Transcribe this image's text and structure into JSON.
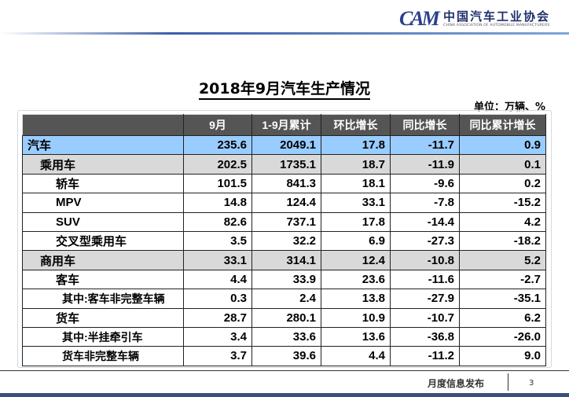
{
  "logo": {
    "cn": "中国汽车工业协会",
    "en": "CHINA ASSOCIATION OF AUTOMOBILE MANUFACTURERS",
    "mark": "CAM"
  },
  "title": "2018年9月汽车生产情况",
  "unit": "单位：万辆、%",
  "table": {
    "headers": [
      "",
      "9月",
      "1-9月累计",
      "环比增长",
      "同比增长",
      "同比累计增长"
    ],
    "rows": [
      {
        "label": "汽车",
        "values": [
          "235.6",
          "2049.1",
          "17.8",
          "-11.7",
          "0.9"
        ]
      },
      {
        "label": "乘用车",
        "values": [
          "202.5",
          "1735.1",
          "18.7",
          "-11.9",
          "0.1"
        ]
      },
      {
        "label": "轿车",
        "values": [
          "101.5",
          "841.3",
          "18.1",
          "-9.6",
          "0.2"
        ]
      },
      {
        "label": "MPV",
        "values": [
          "14.8",
          "124.4",
          "33.1",
          "-7.8",
          "-15.2"
        ]
      },
      {
        "label": "SUV",
        "values": [
          "82.6",
          "737.1",
          "17.8",
          "-14.4",
          "4.2"
        ]
      },
      {
        "label": "交叉型乘用车",
        "values": [
          "3.5",
          "32.2",
          "6.9",
          "-27.3",
          "-18.2"
        ]
      },
      {
        "label": "商用车",
        "values": [
          "33.1",
          "314.1",
          "12.4",
          "-10.8",
          "5.2"
        ]
      },
      {
        "label": "客车",
        "values": [
          "4.4",
          "33.9",
          "23.6",
          "-11.6",
          "-2.7"
        ]
      },
      {
        "label": "其中:客车非完整车辆",
        "values": [
          "0.3",
          "2.4",
          "13.8",
          "-27.9",
          "-35.1"
        ]
      },
      {
        "label": "货车",
        "values": [
          "28.7",
          "280.1",
          "10.9",
          "-10.7",
          "6.2"
        ]
      },
      {
        "label": "其中:半挂牵引车",
        "values": [
          "3.4",
          "33.6",
          "13.6",
          "-36.8",
          "-26.0"
        ]
      },
      {
        "label": "货车非完整车辆",
        "values": [
          "3.7",
          "39.6",
          "4.4",
          "-11.2",
          "9.0"
        ]
      }
    ]
  },
  "footer": {
    "text": "月度信息发布",
    "page": "3"
  },
  "colors": {
    "header": "#555555",
    "total_row": "#99ccff",
    "group_row": "#d9d9d9",
    "brand": "#2b3f8c"
  }
}
